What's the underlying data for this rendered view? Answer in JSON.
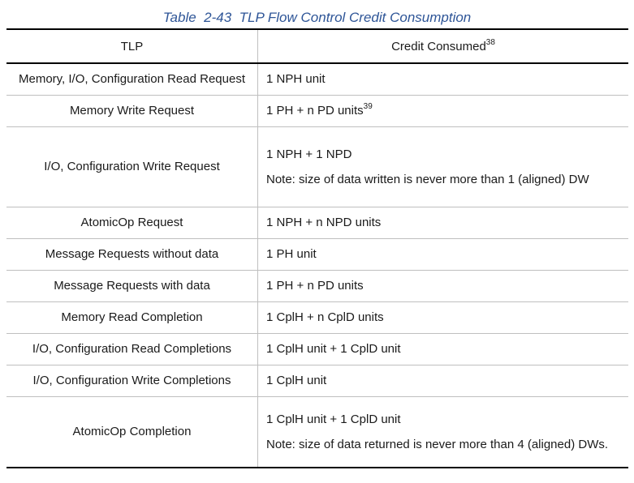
{
  "caption": "Table  2-43  TLP Flow Control Credit Consumption",
  "table": {
    "headers": {
      "tlp": "TLP",
      "credit": "Credit Consumed",
      "credit_footnote": "38"
    },
    "rows": [
      {
        "tlp": "Memory, I/O, Configuration Read Request",
        "credit": "1 NPH unit"
      },
      {
        "tlp": "Memory Write Request",
        "credit": "1 PH + n PD units",
        "footnote": "39"
      },
      {
        "tlp": "I/O, Configuration Write Request",
        "credit": "1 NPH + 1 NPD",
        "note": "Note: size of data written is never more than 1 (aligned) DW"
      },
      {
        "tlp": "AtomicOp Request",
        "credit": "1 NPH + n NPD units"
      },
      {
        "tlp": "Message Requests without data",
        "credit": "1 PH unit"
      },
      {
        "tlp": "Message Requests with data",
        "credit": "1 PH + n PD units"
      },
      {
        "tlp": "Memory Read Completion",
        "credit": "1 CplH + n CplD units"
      },
      {
        "tlp": "I/O, Configuration Read Completions",
        "credit": "1 CplH unit + 1 CplD unit"
      },
      {
        "tlp": "I/O, Configuration Write Completions",
        "credit": "1 CplH unit"
      },
      {
        "tlp": "AtomicOp Completion",
        "credit": "1 CplH unit + 1 CplD unit",
        "note": "Note: size of data returned is never more than 4 (aligned) DWs."
      }
    ]
  },
  "colors": {
    "caption": "#2e5597",
    "rule": "#000000",
    "grid": "#bfbfbf"
  }
}
